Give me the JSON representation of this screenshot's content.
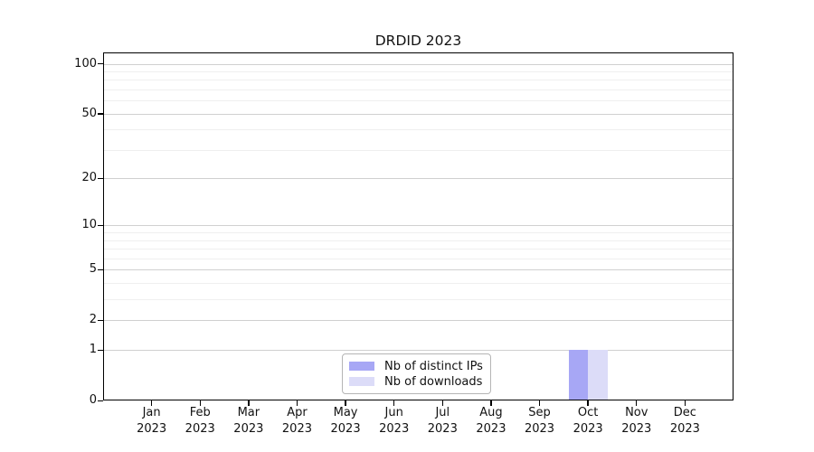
{
  "title": "DRDID 2023",
  "chart_data": {
    "type": "bar",
    "title": "DRDID 2023",
    "categories": [
      "Jan",
      "Feb",
      "Mar",
      "Apr",
      "May",
      "Jun",
      "Jul",
      "Aug",
      "Sep",
      "Oct",
      "Nov",
      "Dec"
    ],
    "category_year_labels": [
      "2023",
      "2023",
      "2023",
      "2023",
      "2023",
      "2023",
      "2023",
      "2023",
      "2023",
      "2023",
      "2023",
      "2023"
    ],
    "series": [
      {
        "name": "Nb of distinct IPs",
        "color": "#a7a7f5",
        "values": [
          0,
          0,
          0,
          0,
          0,
          0,
          0,
          0,
          0,
          1,
          0,
          0
        ]
      },
      {
        "name": "Nb of downloads",
        "color": "#dcdcf8",
        "values": [
          0,
          0,
          0,
          0,
          0,
          0,
          0,
          0,
          0,
          1,
          0,
          0
        ]
      }
    ],
    "xlabel": "",
    "ylabel": "",
    "yscale": "log1p",
    "ylim": [
      0,
      117
    ],
    "yticks": [
      0,
      1,
      2,
      5,
      10,
      20,
      50,
      100
    ],
    "ytick_labels": [
      "0",
      "1",
      "2",
      "5",
      "10",
      "20",
      "50",
      "100"
    ],
    "minor_gridlines": [
      3,
      4,
      6,
      7,
      8,
      9,
      30,
      40,
      60,
      70,
      80,
      90
    ],
    "grid": true,
    "legend_position": "inside-bottom-center-left"
  },
  "colors": {
    "background": "#ffffff",
    "axis": "#000000",
    "major_grid": "#d0d0d0",
    "minor_grid": "#efefef",
    "text": "#111111"
  }
}
